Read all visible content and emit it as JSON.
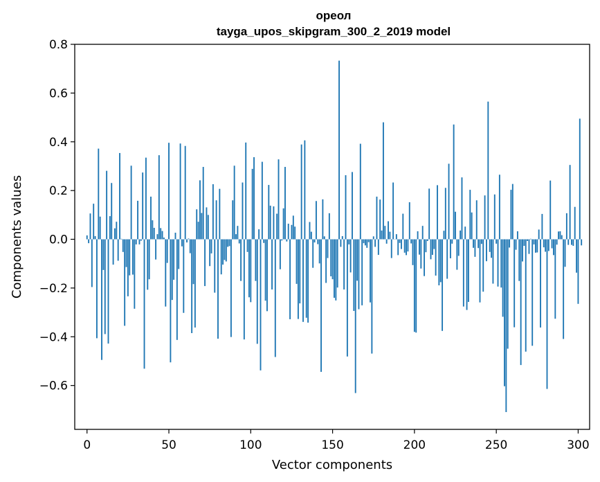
{
  "chart_data": {
    "type": "bar",
    "title": "ореол",
    "subtitle": "tayga_upos_skipgram_300_2_2019 model",
    "xlabel": "Vector components",
    "ylabel": "Components values",
    "xlim": [
      -7.5,
      307
    ],
    "ylim": [
      -0.78,
      0.8
    ],
    "xticks": [
      0,
      50,
      100,
      150,
      200,
      250,
      300
    ],
    "yticks": [
      -0.6,
      -0.4,
      -0.2,
      0.0,
      0.2,
      0.4,
      0.6,
      0.8
    ],
    "ytick_labels": [
      "−0.6",
      "−0.4",
      "−0.2",
      "0.0",
      "0.2",
      "0.4",
      "0.6",
      "0.8"
    ],
    "bar_color": "#1f77b4",
    "values": [
      0.016,
      -0.016,
      0.106,
      -0.196,
      0.146,
      0.013,
      -0.406,
      0.372,
      0.093,
      -0.495,
      -0.126,
      -0.389,
      0.281,
      -0.428,
      0.095,
      0.231,
      -0.104,
      0.045,
      0.072,
      -0.088,
      0.354,
      0.002,
      -0.052,
      -0.355,
      -0.114,
      -0.234,
      -0.148,
      0.302,
      -0.145,
      -0.285,
      -0.021,
      0.158,
      -0.021,
      -0.006,
      0.274,
      -0.531,
      0.335,
      -0.207,
      -0.164,
      0.175,
      0.078,
      0.047,
      -0.083,
      0.021,
      0.345,
      0.046,
      0.034,
      0.007,
      -0.276,
      -0.097,
      0.396,
      -0.505,
      -0.249,
      -0.166,
      0.027,
      -0.413,
      -0.122,
      0.393,
      -0.029,
      -0.302,
      0.383,
      -0.013,
      0.003,
      -0.057,
      -0.385,
      -0.184,
      -0.362,
      0.123,
      0.072,
      0.242,
      0.108,
      0.297,
      -0.192,
      0.131,
      0.1,
      -0.11,
      -0.058,
      0.226,
      -0.219,
      0.16,
      -0.408,
      0.207,
      -0.144,
      -0.104,
      -0.085,
      -0.091,
      -0.031,
      -0.028,
      -0.401,
      0.16,
      0.302,
      0.021,
      0.055,
      -0.017,
      -0.171,
      0.233,
      -0.411,
      0.397,
      -0.052,
      -0.238,
      -0.258,
      0.289,
      0.337,
      -0.171,
      -0.429,
      0.041,
      -0.538,
      0.318,
      -0.015,
      -0.252,
      -0.295,
      0.223,
      0.138,
      -0.206,
      0.135,
      -0.483,
      0.105,
      0.328,
      -0.123,
      -0.005,
      0.127,
      0.297,
      -0.009,
      0.064,
      -0.328,
      0.059,
      0.097,
      0.052,
      -0.183,
      -0.327,
      -0.263,
      0.389,
      -0.339,
      0.406,
      -0.322,
      -0.342,
      0.071,
      0.031,
      -0.117,
      -0.013,
      0.157,
      -0.02,
      -0.099,
      -0.544,
      0.164,
      0.012,
      -0.179,
      -0.077,
      0.107,
      -0.152,
      -0.164,
      -0.24,
      -0.251,
      -0.198,
      0.733,
      -0.031,
      0.013,
      -0.206,
      0.263,
      -0.481,
      -0.021,
      -0.136,
      0.276,
      -0.294,
      -0.631,
      -0.17,
      -0.287,
      0.392,
      -0.271,
      -0.016,
      -0.025,
      -0.035,
      -0.012,
      -0.259,
      -0.469,
      0.012,
      -0.031,
      0.175,
      -0.064,
      0.163,
      0.036,
      0.48,
      0.055,
      -0.018,
      0.074,
      0.031,
      -0.077,
      0.233,
      0.001,
      0.021,
      -0.065,
      -0.015,
      -0.04,
      0.105,
      -0.055,
      -0.065,
      -0.05,
      0.152,
      -0.017,
      -0.106,
      -0.38,
      -0.383,
      0.033,
      -0.063,
      -0.12,
      0.055,
      -0.151,
      -0.053,
      -0.007,
      0.208,
      -0.082,
      -0.064,
      -0.04,
      -0.149,
      0.222,
      -0.189,
      -0.176,
      -0.376,
      0.035,
      0.211,
      -0.162,
      0.31,
      -0.078,
      -0.018,
      0.471,
      0.113,
      -0.125,
      -0.068,
      0.036,
      0.254,
      -0.276,
      0.052,
      -0.29,
      -0.257,
      0.203,
      0.11,
      -0.035,
      -0.072,
      0.16,
      -0.036,
      -0.259,
      -0.019,
      -0.215,
      0.18,
      -0.09,
      0.565,
      -0.052,
      -0.076,
      -0.182,
      0.184,
      -0.018,
      -0.194,
      0.265,
      -0.198,
      -0.318,
      -0.603,
      -0.709,
      -0.449,
      -0.034,
      0.203,
      0.227,
      -0.361,
      -0.043,
      0.033,
      -0.171,
      -0.516,
      -0.091,
      -0.027,
      -0.461,
      -0.007,
      -0.06,
      0.002,
      -0.437,
      -0.021,
      -0.055,
      -0.054,
      0.04,
      -0.362,
      0.104,
      -0.033,
      -0.051,
      -0.614,
      -0.048,
      0.241,
      -0.037,
      -0.065,
      -0.326,
      -0.022,
      0.032,
      0.033,
      0.017,
      -0.409,
      -0.113,
      0.107,
      -0.023,
      0.305,
      -0.023,
      -0.027,
      0.133,
      -0.137,
      -0.265,
      0.495,
      -0.025
    ]
  }
}
